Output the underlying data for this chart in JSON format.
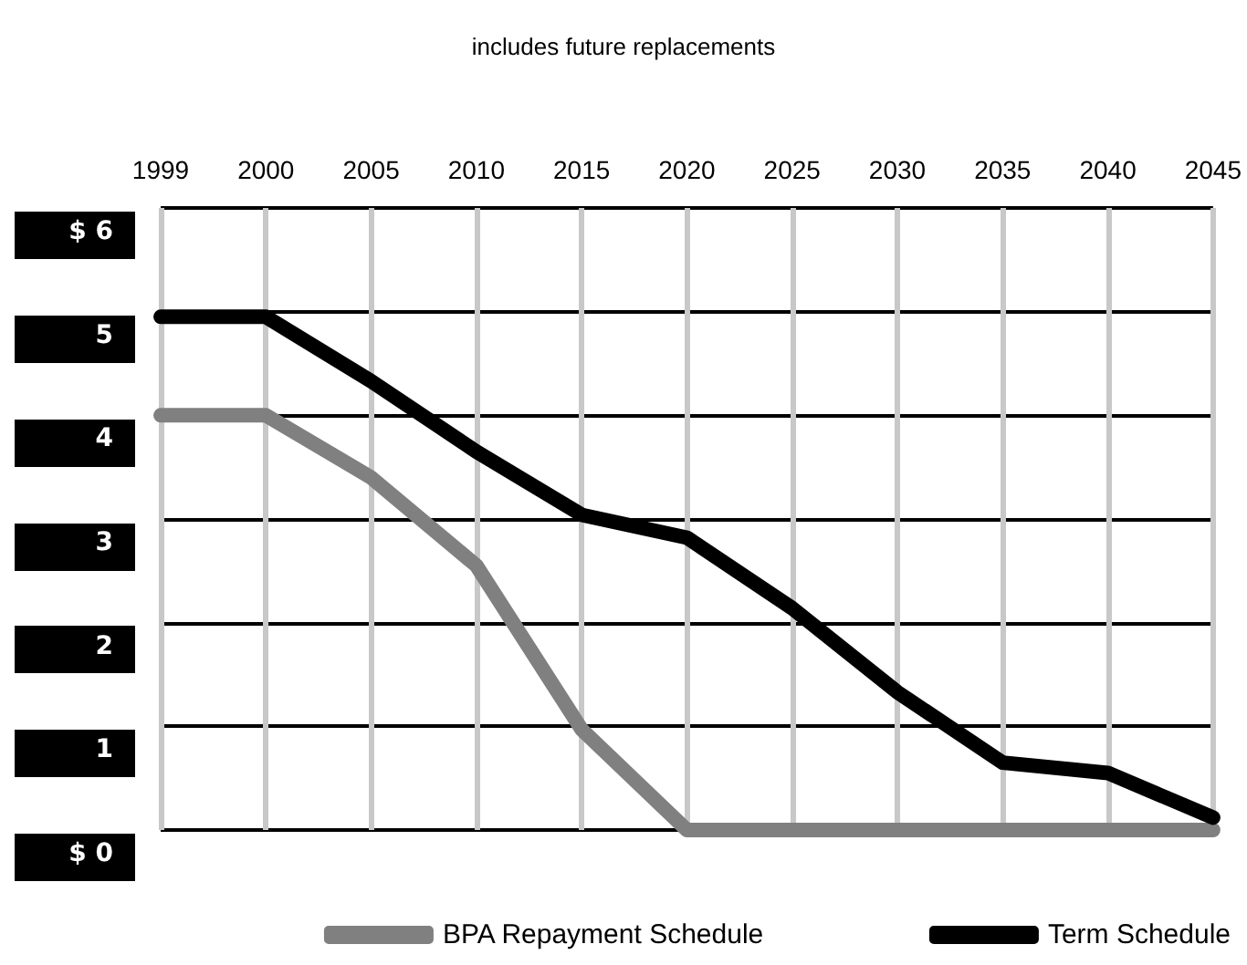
{
  "chart_data": {
    "type": "line",
    "title": "includes future replacements",
    "categories": [
      "1999",
      "2000",
      "2005",
      "2010",
      "2015",
      "2020",
      "2025",
      "2030",
      "2035",
      "2040",
      "2045"
    ],
    "series": [
      {
        "name": "BPA Repayment Schedule",
        "color": "#808080",
        "values": [
          4.0,
          4.0,
          3.4,
          2.55,
          0.97,
          0,
          0,
          0,
          0,
          0,
          0
        ]
      },
      {
        "name": "Term Schedule",
        "color": "#000000",
        "values": [
          4.95,
          4.95,
          4.33,
          3.65,
          3.04,
          2.82,
          2.14,
          1.33,
          0.65,
          0.55,
          0.12
        ]
      }
    ],
    "ylim": [
      0,
      6
    ],
    "yticks": [
      {
        "value": 0,
        "label": "$ 0"
      },
      1,
      2,
      3,
      4,
      5,
      {
        "value": 6,
        "label": "$ 6"
      }
    ],
    "grid": true,
    "legend": "bottom",
    "marker": "none",
    "line_style": "solid"
  }
}
